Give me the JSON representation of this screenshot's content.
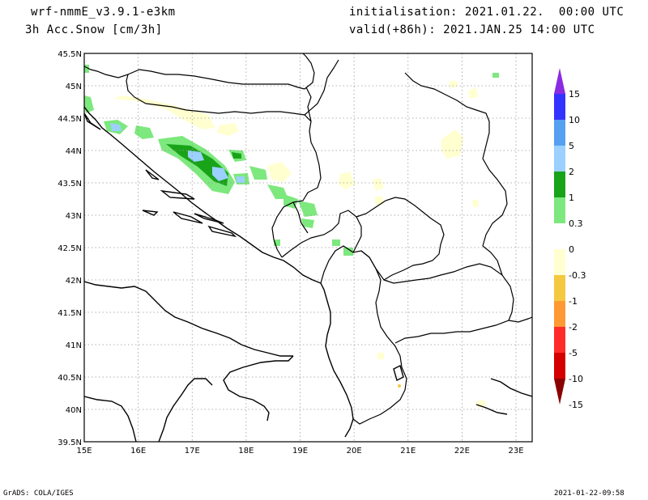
{
  "header": {
    "model": "wrf-nmmE_v3.9.1-e3km",
    "field": "3h Acc.Snow [cm/3h]",
    "init": "initialisation: 2021.01.22.  00:00 UTC",
    "valid": "valid(+86h): 2021.JAN.25 14:00 UTC"
  },
  "footer": {
    "left": "GrADS: COLA/IGES",
    "right": "2021-01-22-09:58"
  },
  "map": {
    "lon_range": [
      15,
      23.3
    ],
    "lat_range": [
      39.5,
      45.5
    ],
    "lon_ticks": [
      "15E",
      "16E",
      "17E",
      "18E",
      "19E",
      "20E",
      "21E",
      "22E",
      "23E"
    ],
    "lat_ticks": [
      "39.5N",
      "40N",
      "40.5N",
      "41N",
      "41.5N",
      "42N",
      "42.5N",
      "43N",
      "43.5N",
      "44N",
      "44.5N",
      "45N",
      "45.5N"
    ],
    "grid": "dotted"
  },
  "colorbar": {
    "labels": [
      "15",
      "10",
      "5",
      "2",
      "1",
      "0.3",
      "0",
      "-0.3",
      "-1",
      "-2",
      "-5",
      "-10",
      "-15"
    ],
    "colors": [
      "#8a2be2",
      "#3333ff",
      "#55a0f0",
      "#9bd0ff",
      "#19a319",
      "#7de87d",
      "#ffffff",
      "#ffffd0",
      "#f5c842",
      "#ff9933",
      "#ff2b2b",
      "#d40000",
      "#8b0000"
    ]
  }
}
